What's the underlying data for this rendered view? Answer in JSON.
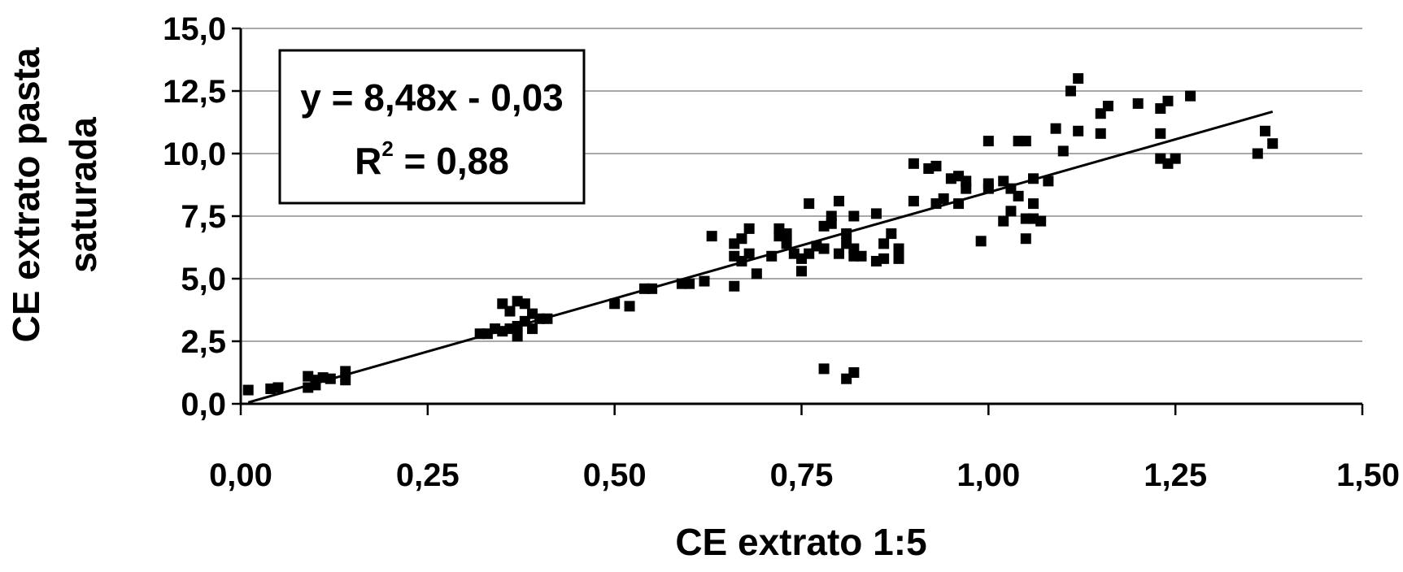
{
  "chart_data": {
    "type": "scatter",
    "title": "",
    "xlabel": "CE extrato 1:5",
    "ylabel_lines": [
      "CE extrato pasta",
      "saturada"
    ],
    "xlim": [
      0,
      1.5
    ],
    "ylim": [
      0,
      15
    ],
    "x_ticks": [
      "0,00",
      "0,25",
      "0,50",
      "0,75",
      "1,00",
      "1,25",
      "1,50"
    ],
    "y_ticks": [
      "0,0",
      "2,5",
      "5,0",
      "7,5",
      "10,0",
      "12,5",
      "15,0"
    ],
    "grid": "horizontal",
    "legend": "none",
    "equation": {
      "line1": "y = 8,48x - 0,03",
      "r_prefix": "R",
      "r_exp": "2",
      "r_suffix": " = 0,88"
    },
    "trendline": {
      "slope": 8.48,
      "intercept": -0.03,
      "x_range": [
        0.01,
        1.38
      ]
    },
    "points": [
      [
        0.01,
        0.55
      ],
      [
        0.04,
        0.6
      ],
      [
        0.05,
        0.65
      ],
      [
        0.09,
        0.65
      ],
      [
        0.09,
        1.1
      ],
      [
        0.1,
        0.75
      ],
      [
        0.1,
        0.95
      ],
      [
        0.11,
        1.05
      ],
      [
        0.12,
        1.0
      ],
      [
        0.14,
        0.95
      ],
      [
        0.14,
        1.3
      ],
      [
        0.32,
        2.8
      ],
      [
        0.33,
        2.8
      ],
      [
        0.34,
        3.0
      ],
      [
        0.35,
        4.0
      ],
      [
        0.35,
        2.9
      ],
      [
        0.36,
        3.7
      ],
      [
        0.36,
        3.0
      ],
      [
        0.37,
        4.1
      ],
      [
        0.37,
        2.7
      ],
      [
        0.37,
        3.1
      ],
      [
        0.38,
        4.0
      ],
      [
        0.38,
        3.3
      ],
      [
        0.39,
        3.0
      ],
      [
        0.39,
        3.6
      ],
      [
        0.4,
        3.4
      ],
      [
        0.41,
        3.4
      ],
      [
        0.5,
        4.0
      ],
      [
        0.52,
        3.9
      ],
      [
        0.54,
        4.6
      ],
      [
        0.55,
        4.6
      ],
      [
        0.59,
        4.8
      ],
      [
        0.6,
        4.8
      ],
      [
        0.62,
        4.9
      ],
      [
        0.63,
        6.7
      ],
      [
        0.66,
        4.7
      ],
      [
        0.66,
        5.9
      ],
      [
        0.66,
        6.4
      ],
      [
        0.67,
        6.6
      ],
      [
        0.67,
        5.7
      ],
      [
        0.68,
        6.0
      ],
      [
        0.68,
        7.0
      ],
      [
        0.69,
        5.2
      ],
      [
        0.71,
        5.9
      ],
      [
        0.72,
        7.0
      ],
      [
        0.72,
        6.7
      ],
      [
        0.73,
        6.8
      ],
      [
        0.73,
        6.4
      ],
      [
        0.74,
        6.0
      ],
      [
        0.75,
        5.8
      ],
      [
        0.75,
        5.3
      ],
      [
        0.76,
        8.0
      ],
      [
        0.76,
        6.0
      ],
      [
        0.77,
        6.3
      ],
      [
        0.78,
        6.2
      ],
      [
        0.78,
        7.1
      ],
      [
        0.79,
        7.5
      ],
      [
        0.79,
        7.2
      ],
      [
        0.8,
        8.1
      ],
      [
        0.8,
        6.0
      ],
      [
        0.81,
        6.4
      ],
      [
        0.81,
        6.8
      ],
      [
        0.82,
        7.5
      ],
      [
        0.82,
        6.2
      ],
      [
        0.82,
        5.9
      ],
      [
        0.83,
        5.9
      ],
      [
        0.85,
        5.7
      ],
      [
        0.85,
        7.6
      ],
      [
        0.86,
        5.8
      ],
      [
        0.86,
        6.4
      ],
      [
        0.87,
        6.8
      ],
      [
        0.88,
        6.2
      ],
      [
        0.88,
        5.8
      ],
      [
        0.9,
        8.1
      ],
      [
        0.9,
        9.6
      ],
      [
        0.92,
        9.4
      ],
      [
        0.93,
        9.5
      ],
      [
        0.93,
        8.0
      ],
      [
        0.94,
        8.2
      ],
      [
        0.95,
        9.0
      ],
      [
        0.96,
        9.1
      ],
      [
        0.96,
        8.0
      ],
      [
        0.97,
        8.6
      ],
      [
        0.97,
        8.9
      ],
      [
        0.99,
        6.5
      ],
      [
        1.0,
        10.5
      ],
      [
        1.0,
        8.6
      ],
      [
        1.0,
        8.8
      ],
      [
        1.02,
        8.9
      ],
      [
        1.02,
        7.3
      ],
      [
        1.03,
        7.7
      ],
      [
        1.03,
        8.6
      ],
      [
        1.04,
        8.3
      ],
      [
        1.04,
        10.5
      ],
      [
        1.05,
        10.5
      ],
      [
        1.05,
        6.6
      ],
      [
        1.05,
        7.4
      ],
      [
        1.06,
        8.0
      ],
      [
        1.06,
        9.0
      ],
      [
        1.06,
        7.4
      ],
      [
        1.07,
        7.3
      ],
      [
        1.08,
        8.9
      ],
      [
        1.09,
        11.0
      ],
      [
        1.1,
        10.1
      ],
      [
        1.11,
        12.5
      ],
      [
        1.12,
        13.0
      ],
      [
        1.12,
        10.9
      ],
      [
        1.15,
        11.6
      ],
      [
        1.15,
        10.8
      ],
      [
        1.16,
        11.9
      ],
      [
        1.2,
        12.0
      ],
      [
        1.23,
        11.8
      ],
      [
        1.23,
        10.8
      ],
      [
        1.23,
        9.8
      ],
      [
        1.24,
        12.1
      ],
      [
        1.24,
        9.6
      ],
      [
        1.25,
        9.8
      ],
      [
        1.27,
        12.3
      ],
      [
        1.36,
        10.0
      ],
      [
        1.37,
        10.9
      ],
      [
        1.38,
        10.4
      ],
      [
        0.78,
        1.4
      ],
      [
        0.81,
        1.0
      ],
      [
        0.82,
        1.25
      ]
    ]
  }
}
